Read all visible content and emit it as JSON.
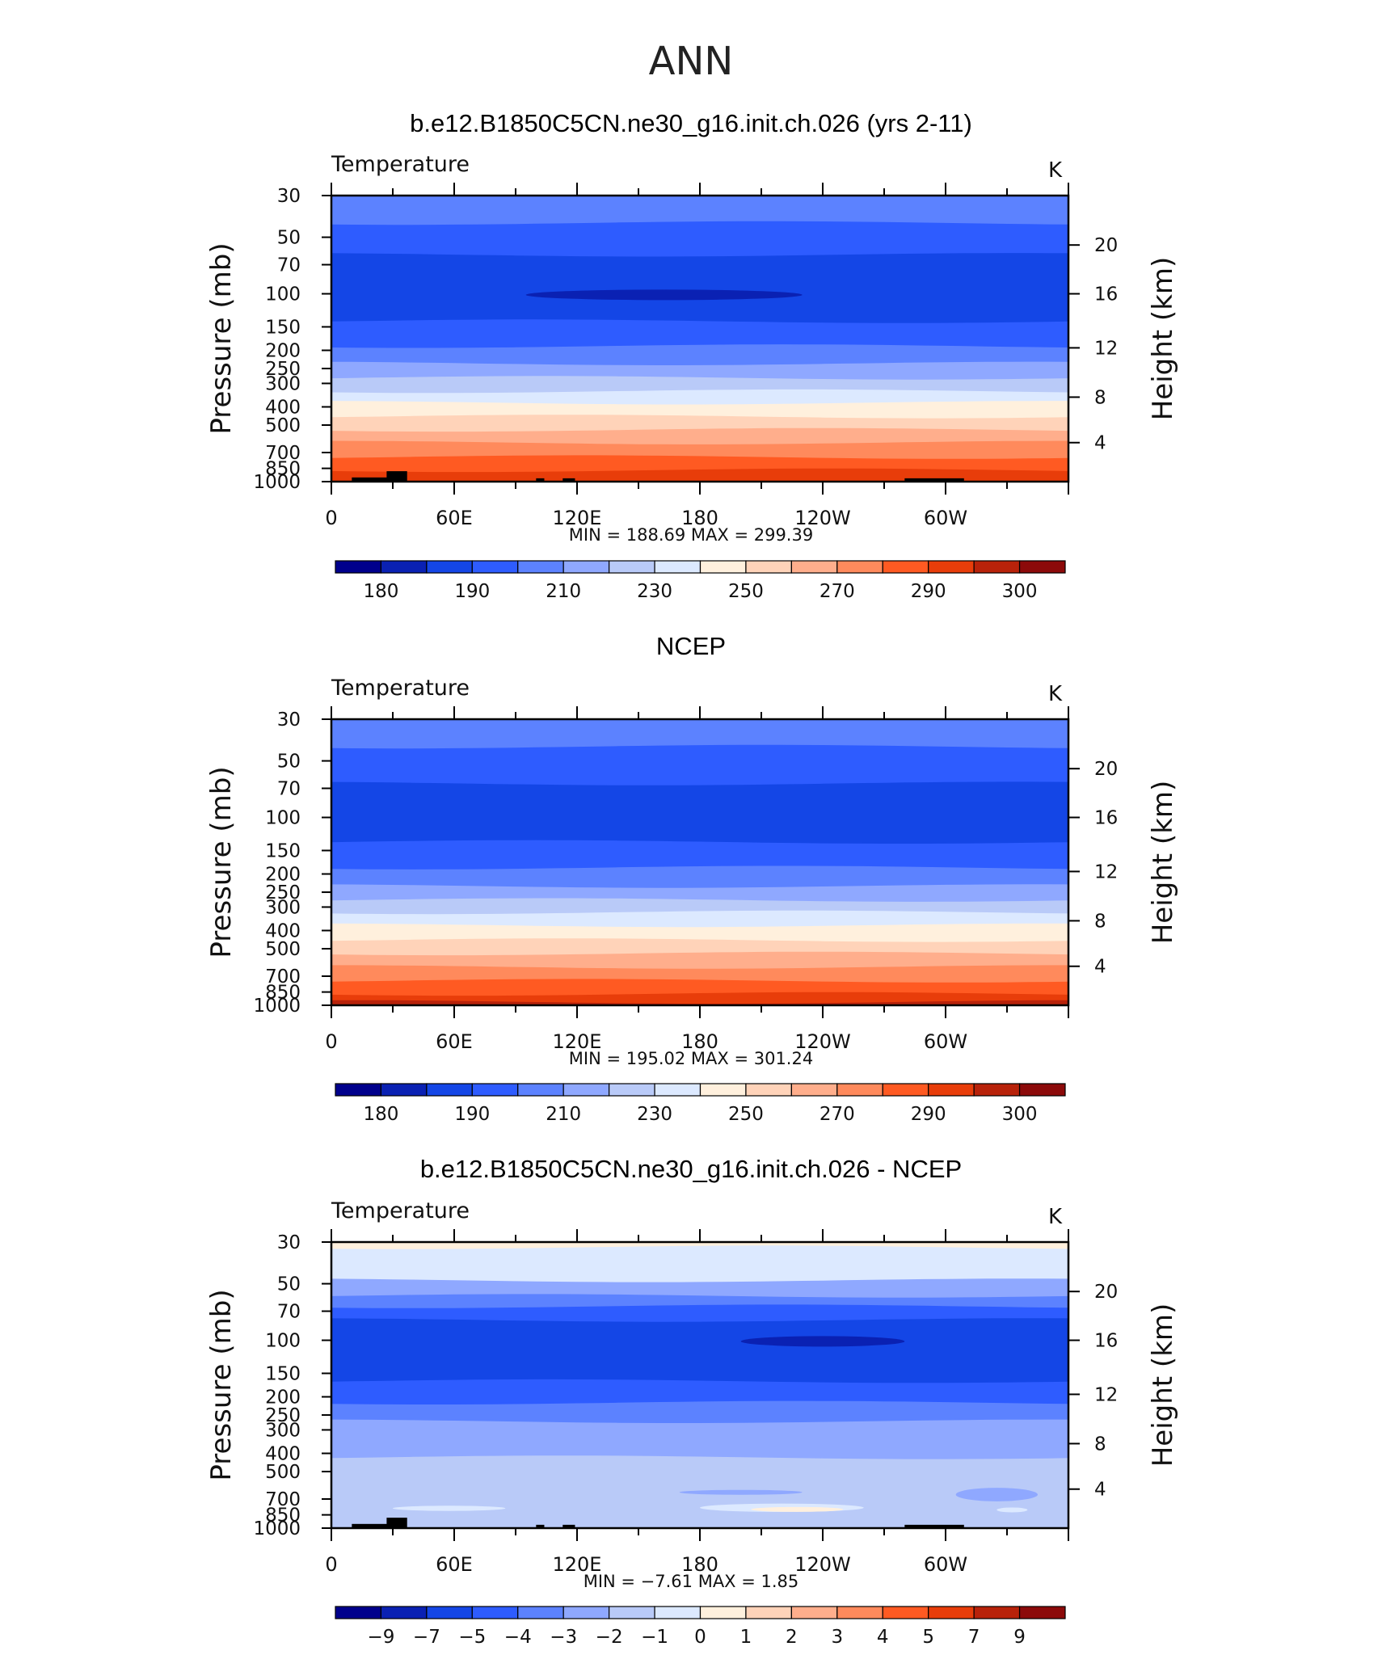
{
  "suptitle": "ANN",
  "colors": {
    "temp": [
      "#00008c",
      "#0a21b3",
      "#1446e6",
      "#2e5cff",
      "#5c82ff",
      "#8fa8ff",
      "#b9caf8",
      "#dce9ff",
      "#fff0dd",
      "#ffd3b9",
      "#ffae8c",
      "#ff8a5c",
      "#ff5a22",
      "#e83d0a",
      "#b8220a",
      "#8c0a0a"
    ],
    "diff": [
      "#00008c",
      "#0a21b3",
      "#1446e6",
      "#2e5cff",
      "#5c82ff",
      "#8fa8ff",
      "#b9caf8",
      "#dce9ff",
      "#fff0dd",
      "#ffd3b9",
      "#ffae8c",
      "#ff8a5c",
      "#ff5a22",
      "#e83d0a",
      "#b8220a",
      "#8c0a0a"
    ],
    "land": "#000000"
  },
  "chart_data": [
    {
      "type": "heatmap",
      "title": "b.e12.B1850C5CN.ne30_g16.init.ch.026 (yrs 2-11)",
      "left_label": "Temperature",
      "units": "K",
      "ylabel": "Pressure (mb)",
      "ylabel_right": "Height (km)",
      "x_ticks": [
        "0",
        "60E",
        "120E",
        "180",
        "120W",
        "60W"
      ],
      "y_ticks": [
        "30",
        "50",
        "70",
        "100",
        "150",
        "200",
        "250",
        "300",
        "400",
        "500",
        "700",
        "850",
        "1000"
      ],
      "y_right_ticks": [
        "20",
        "16",
        "12",
        "8",
        "4"
      ],
      "min": "188.69",
      "max": "299.39",
      "stats_text": "MIN = 188.69   MAX = 299.39",
      "colorbar_labels": [
        "180",
        "190",
        "210",
        "230",
        "250",
        "270",
        "290",
        "300"
      ],
      "color_key": "temp",
      "levels": [
        {
          "p": 30,
          "c": 4
        },
        {
          "p": 42,
          "c": 3
        },
        {
          "p": 62,
          "c": 2
        },
        {
          "p": 140,
          "c": 3
        },
        {
          "p": 190,
          "c": 4
        },
        {
          "p": 235,
          "c": 5
        },
        {
          "p": 280,
          "c": 6
        },
        {
          "p": 330,
          "c": 7
        },
        {
          "p": 380,
          "c": 8
        },
        {
          "p": 450,
          "c": 9
        },
        {
          "p": 530,
          "c": 10
        },
        {
          "p": 620,
          "c": 11
        },
        {
          "p": 740,
          "c": 12
        },
        {
          "p": 870,
          "c": 13
        },
        {
          "p": 1000,
          "c": 13
        }
      ],
      "features": [
        {
          "lon0": 95,
          "lon1": 230,
          "p0": 95,
          "p1": 108,
          "c": 1
        }
      ],
      "land": [
        [
          10,
          36,
          950
        ],
        [
          27,
          37,
          880
        ],
        [
          100,
          104,
          960
        ],
        [
          113,
          119,
          960
        ],
        [
          280,
          309,
          960
        ]
      ]
    },
    {
      "type": "heatmap",
      "title": "NCEP",
      "left_label": "Temperature",
      "units": "K",
      "ylabel": "Pressure (mb)",
      "ylabel_right": "Height (km)",
      "x_ticks": [
        "0",
        "60E",
        "120E",
        "180",
        "120W",
        "60W"
      ],
      "y_ticks": [
        "30",
        "50",
        "70",
        "100",
        "150",
        "200",
        "250",
        "300",
        "400",
        "500",
        "700",
        "850",
        "1000"
      ],
      "y_right_ticks": [
        "20",
        "16",
        "12",
        "8",
        "4"
      ],
      "min": "195.02",
      "max": "301.24",
      "stats_text": "MIN = 195.02   MAX = 301.24",
      "colorbar_labels": [
        "180",
        "190",
        "210",
        "230",
        "250",
        "270",
        "290",
        "300"
      ],
      "color_key": "temp",
      "levels": [
        {
          "p": 30,
          "c": 4
        },
        {
          "p": 42,
          "c": 3
        },
        {
          "p": 66,
          "c": 2
        },
        {
          "p": 135,
          "c": 3
        },
        {
          "p": 185,
          "c": 4
        },
        {
          "p": 232,
          "c": 5
        },
        {
          "p": 275,
          "c": 6
        },
        {
          "p": 320,
          "c": 7
        },
        {
          "p": 375,
          "c": 8
        },
        {
          "p": 450,
          "c": 9
        },
        {
          "p": 530,
          "c": 10
        },
        {
          "p": 625,
          "c": 11
        },
        {
          "p": 740,
          "c": 12
        },
        {
          "p": 870,
          "c": 13
        },
        {
          "p": 960,
          "c": 14
        }
      ],
      "features": [],
      "land": []
    },
    {
      "type": "heatmap",
      "title": "b.e12.B1850C5CN.ne30_g16.init.ch.026 - NCEP",
      "left_label": "Temperature",
      "units": "K",
      "ylabel": "Pressure (mb)",
      "ylabel_right": "Height (km)",
      "x_ticks": [
        "0",
        "60E",
        "120E",
        "180",
        "120W",
        "60W"
      ],
      "y_ticks": [
        "30",
        "50",
        "70",
        "100",
        "150",
        "200",
        "250",
        "300",
        "400",
        "500",
        "700",
        "850",
        "1000"
      ],
      "y_right_ticks": [
        "20",
        "16",
        "12",
        "8",
        "4"
      ],
      "min": "−7.61",
      "max": "1.85",
      "stats_text": "MIN =    −7.61   MAX =     1.85",
      "colorbar_labels": [
        "−9",
        "−7",
        "−5",
        "−4",
        "−3",
        "−2",
        "−1",
        "0",
        "1",
        "2",
        "3",
        "4",
        "5",
        "7",
        "9"
      ],
      "color_key": "diff",
      "levels": [
        {
          "p": 30,
          "c": 8
        },
        {
          "p": 32,
          "c": 7
        },
        {
          "p": 48,
          "c": 5
        },
        {
          "p": 58,
          "c": 4
        },
        {
          "p": 66,
          "c": 3
        },
        {
          "p": 78,
          "c": 2
        },
        {
          "p": 165,
          "c": 3
        },
        {
          "p": 215,
          "c": 4
        },
        {
          "p": 270,
          "c": 5
        },
        {
          "p": 420,
          "c": 6
        },
        {
          "p": 1000,
          "c": 6
        }
      ],
      "features": [
        {
          "lon0": 200,
          "lon1": 280,
          "p0": 95,
          "p1": 108,
          "c": 1
        },
        {
          "lon0": 170,
          "lon1": 230,
          "p0": 630,
          "p1": 660,
          "c": 5
        },
        {
          "lon0": 305,
          "lon1": 345,
          "p0": 610,
          "p1": 720,
          "c": 5
        },
        {
          "lon0": 30,
          "lon1": 85,
          "p0": 760,
          "p1": 810,
          "c": 7
        },
        {
          "lon0": 180,
          "lon1": 260,
          "p0": 740,
          "p1": 820,
          "c": 7
        },
        {
          "lon0": 205,
          "lon1": 250,
          "p0": 780,
          "p1": 810,
          "c": 8
        },
        {
          "lon0": 325,
          "lon1": 340,
          "p0": 780,
          "p1": 820,
          "c": 7
        }
      ],
      "land": [
        [
          10,
          36,
          950
        ],
        [
          27,
          37,
          880
        ],
        [
          100,
          104,
          960
        ],
        [
          113,
          119,
          960
        ],
        [
          280,
          309,
          960
        ]
      ]
    }
  ]
}
